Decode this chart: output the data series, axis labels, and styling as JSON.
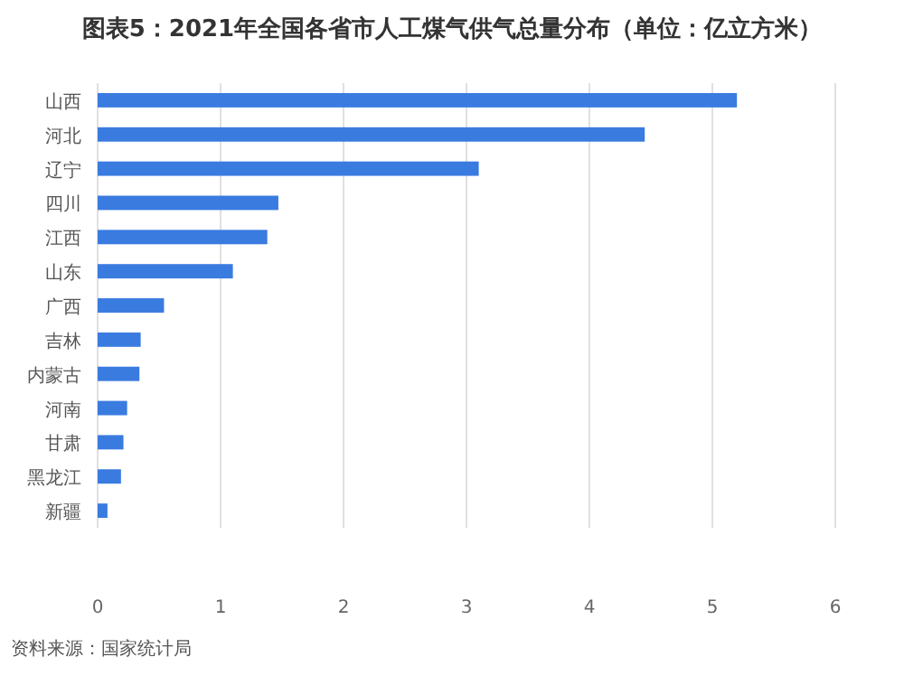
{
  "chart_data": {
    "type": "bar",
    "orientation": "horizontal",
    "title": "图表5：2021年全国各省市人工煤气供气总量分布（单位：亿立方米）",
    "categories": [
      "山西",
      "河北",
      "辽宁",
      "四川",
      "江西",
      "山东",
      "广西",
      "吉林",
      "内蒙古",
      "河南",
      "甘肃",
      "黑龙江",
      "新疆"
    ],
    "values": [
      5.2,
      4.45,
      3.1,
      1.47,
      1.38,
      1.1,
      0.54,
      0.35,
      0.34,
      0.24,
      0.21,
      0.19,
      0.08
    ],
    "color": "#3a7be0",
    "xlim": [
      0,
      6
    ],
    "xticks": [
      0,
      1,
      2,
      3,
      4,
      5,
      6
    ],
    "grid": "x",
    "annotations": [
      "资料来源：国家统计局"
    ]
  }
}
